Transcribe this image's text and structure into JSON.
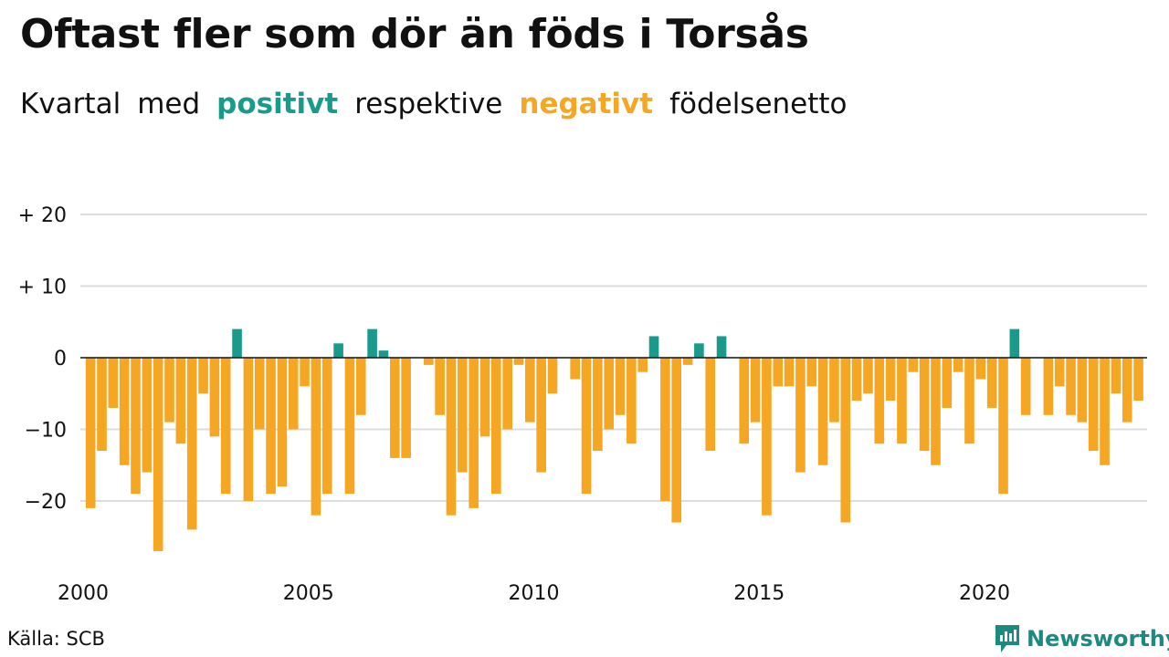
{
  "header": {
    "title": "Oftast fler som dör än föds i Torsås",
    "subtitle_parts": [
      "Kvartal",
      "med",
      "positivt",
      "respektive",
      "negativt",
      "födelsenetto"
    ]
  },
  "footer": {
    "source": "Källa: SCB",
    "brand": "Newsworthy"
  },
  "colors": {
    "positive": "#1a9a8b",
    "negative": "#f5a623",
    "grid": "#dddddd",
    "brand": "#1d8a80"
  },
  "chart_data": {
    "type": "bar",
    "ylim": [
      -28,
      22
    ],
    "y_ticks": [
      {
        "value": 20,
        "label": "+ 20"
      },
      {
        "value": 10,
        "label": "+ 10"
      },
      {
        "value": 0,
        "label": "0"
      },
      {
        "value": -10,
        "label": "−10"
      },
      {
        "value": -20,
        "label": "−20"
      }
    ],
    "x_ticks": [
      {
        "year": 2000,
        "label": "2000"
      },
      {
        "year": 2005,
        "label": "2005"
      },
      {
        "year": 2010,
        "label": "2010"
      },
      {
        "year": 2015,
        "label": "2015"
      },
      {
        "year": 2020,
        "label": "2020"
      }
    ],
    "first_year": 2000,
    "bars_per_year": 4,
    "values": [
      -21,
      -13,
      -7,
      -15,
      -19,
      -16,
      -27,
      -9,
      -12,
      -24,
      -5,
      -11,
      -19,
      4,
      -20,
      -10,
      -19,
      -18,
      -10,
      -4,
      -22,
      -19,
      2,
      -19,
      -8,
      4,
      1,
      -14,
      -14,
      0,
      -1,
      -8,
      -22,
      -16,
      -21,
      -11,
      -19,
      -10,
      -1,
      -9,
      -16,
      -5,
      0,
      -3,
      -19,
      -13,
      -10,
      -8,
      -12,
      -2,
      3,
      -20,
      -23,
      -1,
      2,
      -13,
      3,
      0,
      -12,
      -9,
      -22,
      -4,
      -4,
      -16,
      -4,
      -15,
      -9,
      -23,
      -6,
      -5,
      -12,
      -6,
      -12,
      -2,
      -13,
      -15,
      -7,
      -2,
      -12,
      -3,
      -7,
      -19,
      4,
      -8,
      0,
      -8,
      -4,
      -8,
      -9,
      -13,
      -15,
      -5,
      -9,
      -6
    ]
  }
}
